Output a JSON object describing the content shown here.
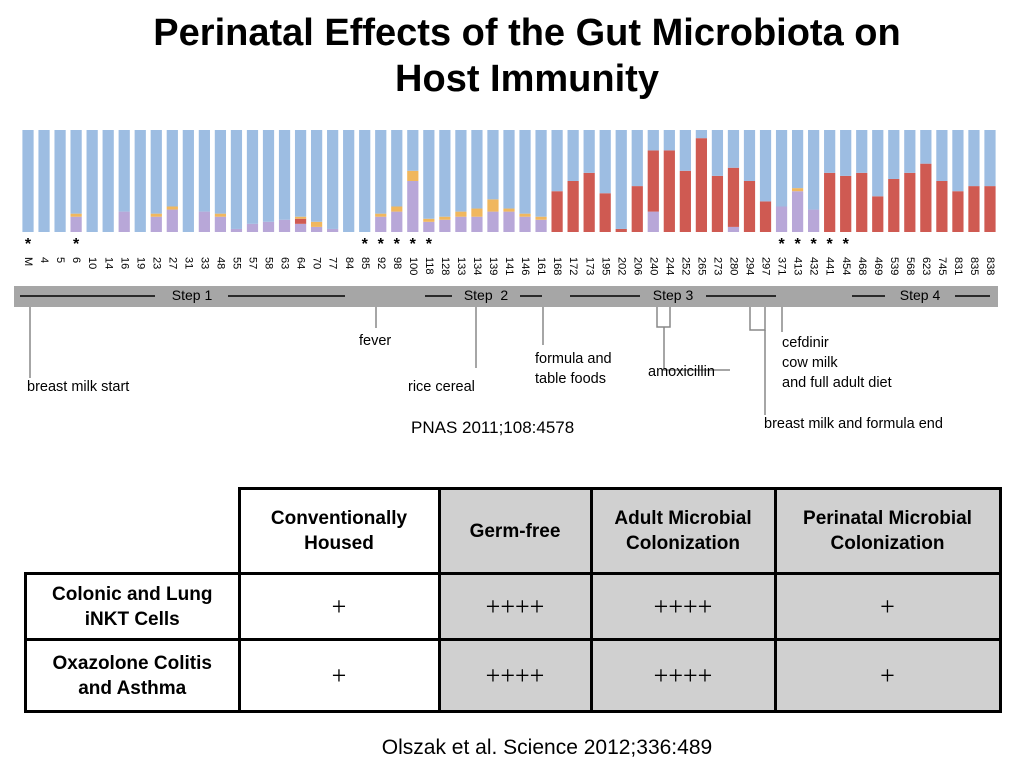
{
  "title": "Perinatal Effects of the Gut Microbiota on\nHost Immunity",
  "chart_data": {
    "type": "stacked-bar",
    "categories": [
      "M",
      "4",
      "5",
      "6",
      "10",
      "14",
      "16",
      "19",
      "23",
      "27",
      "31",
      "33",
      "48",
      "55",
      "57",
      "58",
      "63",
      "64",
      "70",
      "77",
      "84",
      "85",
      "92",
      "98",
      "100",
      "118",
      "128",
      "133",
      "134",
      "139",
      "141",
      "146",
      "161",
      "168",
      "172",
      "173",
      "195",
      "202",
      "206",
      "240",
      "244",
      "252",
      "265",
      "273",
      "280",
      "294",
      "297",
      "371",
      "413",
      "432",
      "441",
      "454",
      "468",
      "469",
      "539",
      "568",
      "623",
      "745",
      "831",
      "835",
      "838"
    ],
    "star_labels": [
      "*",
      null,
      null,
      "*",
      null,
      null,
      null,
      null,
      null,
      null,
      null,
      null,
      null,
      null,
      null,
      null,
      null,
      null,
      null,
      null,
      null,
      "*",
      "*",
      "*",
      "*",
      "*",
      null,
      null,
      null,
      null,
      null,
      null,
      null,
      null,
      null,
      null,
      null,
      null,
      null,
      null,
      null,
      null,
      null,
      null,
      null,
      null,
      null,
      "*",
      "*",
      "*",
      "*",
      "*",
      null,
      null,
      null,
      null,
      null,
      null,
      null,
      null,
      null
    ],
    "series": [
      {
        "color": "#b8a7d8",
        "values": [
          0,
          0,
          0,
          15,
          0,
          0,
          20,
          0,
          15,
          22,
          0,
          20,
          15,
          3,
          8,
          10,
          12,
          8,
          5,
          3,
          0,
          0,
          15,
          20,
          50,
          10,
          12,
          15,
          15,
          20,
          20,
          15,
          12,
          0,
          0,
          0,
          0,
          0,
          0,
          20,
          0,
          0,
          0,
          0,
          5,
          0,
          0,
          25,
          40,
          22,
          0,
          0,
          0,
          0,
          0,
          0,
          0,
          0,
          0,
          0,
          0
        ]
      },
      {
        "color": "#cf5a52",
        "values": [
          0,
          0,
          0,
          0,
          0,
          0,
          0,
          0,
          0,
          0,
          0,
          0,
          0,
          0,
          0,
          0,
          0,
          5,
          0,
          0,
          0,
          0,
          0,
          0,
          0,
          0,
          0,
          0,
          0,
          0,
          0,
          0,
          0,
          40,
          50,
          58,
          38,
          3,
          45,
          60,
          80,
          60,
          92,
          55,
          58,
          50,
          30,
          0,
          0,
          0,
          58,
          55,
          58,
          35,
          52,
          58,
          67,
          50,
          40,
          45,
          45
        ]
      },
      {
        "color": "#f0b75e",
        "values": [
          0,
          0,
          0,
          3,
          0,
          0,
          0,
          0,
          3,
          3,
          0,
          0,
          3,
          0,
          0,
          0,
          0,
          2,
          5,
          0,
          0,
          0,
          3,
          5,
          10,
          3,
          3,
          5,
          8,
          12,
          3,
          3,
          3,
          0,
          0,
          0,
          0,
          0,
          0,
          0,
          0,
          0,
          0,
          0,
          0,
          0,
          0,
          0,
          3,
          0,
          0,
          0,
          0,
          0,
          0,
          0,
          0,
          0,
          0,
          0,
          0
        ]
      },
      {
        "color": "#9dbde2",
        "values": [
          100,
          100,
          100,
          82,
          100,
          100,
          80,
          100,
          82,
          75,
          100,
          80,
          82,
          97,
          92,
          90,
          88,
          85,
          90,
          97,
          100,
          100,
          82,
          75,
          40,
          87,
          85,
          80,
          77,
          68,
          77,
          82,
          85,
          60,
          50,
          42,
          62,
          97,
          55,
          20,
          20,
          40,
          8,
          45,
          37,
          50,
          70,
          75,
          57,
          78,
          42,
          45,
          42,
          65,
          48,
          42,
          33,
          50,
          60,
          55,
          55
        ]
      }
    ],
    "ylim": [
      0,
      100
    ]
  },
  "steps": [
    "Step 1",
    "Step  2",
    "Step 3",
    "Step 4"
  ],
  "annotations": {
    "breast_milk_start": "breast milk start",
    "fever": "fever",
    "rice_cereal": "rice cereal",
    "formula": "formula and\ntable foods",
    "amoxicillin": "amoxicillin",
    "cefdinir": "cefdinir\ncow milk\nand full adult diet",
    "breast_milk_end": "breast milk and formula end"
  },
  "citation_1": "PNAS 2011;108:4578",
  "table": {
    "header": [
      "Conventionally\nHoused",
      "Germ-free",
      "Adult Microbial\nColonization",
      "Perinatal Microbial\nColonization"
    ],
    "rows": [
      [
        "Colonic and Lung\niNKT Cells",
        "+",
        "++++",
        "++++",
        "+"
      ],
      [
        "Oxazolone Colitis\nand Asthma",
        "+",
        "++++",
        "++++",
        "+"
      ]
    ]
  },
  "citation_2": "Olszak et al. Science 2012;336:489"
}
